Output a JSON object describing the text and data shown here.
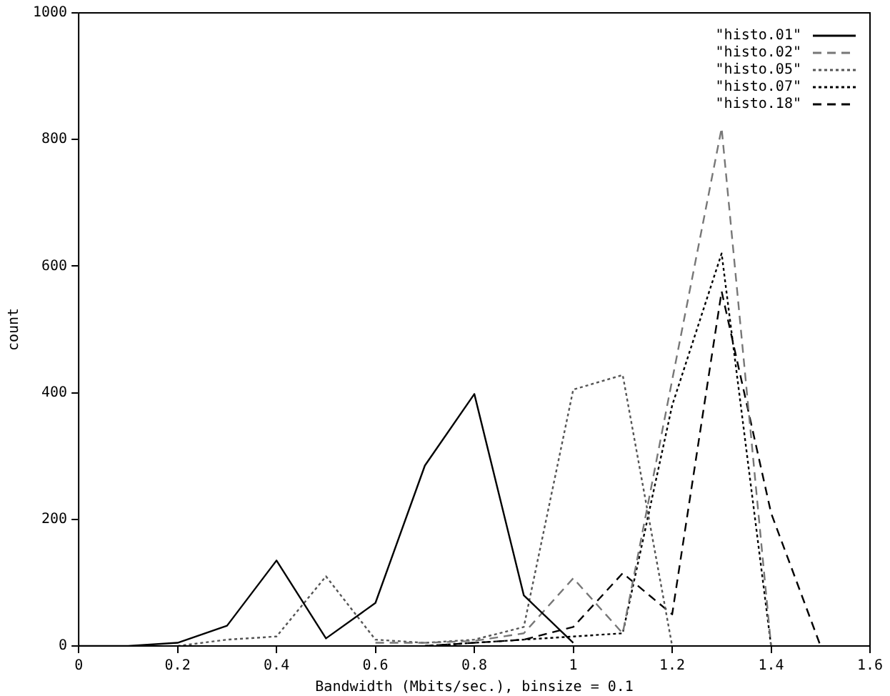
{
  "chart_data": {
    "type": "line",
    "xlabel": "Bandwidth (Mbits/sec.), binsize = 0.1",
    "ylabel": "count",
    "xlim": [
      0,
      1.6
    ],
    "xticks": [
      0,
      0.2,
      0.4,
      0.6,
      0.8,
      1,
      1.2,
      1.4,
      1.6
    ],
    "ylim": [
      0,
      1000
    ],
    "yticks": [
      0,
      200,
      400,
      600,
      800,
      1000
    ],
    "grid": false,
    "legend": "top right",
    "marker": "none",
    "series": [
      {
        "name": "\"histo.01\"",
        "color": "#000000",
        "line_style": "solid",
        "x": [
          0,
          0.1,
          0.2,
          0.3,
          0.4,
          0.5,
          0.6,
          0.7,
          0.8,
          0.9,
          1.0
        ],
        "values": [
          0,
          0,
          5,
          32,
          135,
          12,
          68,
          285,
          398,
          80,
          5
        ]
      },
      {
        "name": "\"histo.02\"",
        "color": "#777777",
        "line_style": "dashed",
        "x": [
          0.6,
          0.7,
          0.8,
          0.9,
          1.0,
          1.1,
          1.2,
          1.3,
          1.4
        ],
        "values": [
          5,
          5,
          8,
          20,
          107,
          20,
          420,
          818,
          0
        ]
      },
      {
        "name": "\"histo.05\"",
        "color": "#555555",
        "line_style": "dotted",
        "x": [
          0.2,
          0.3,
          0.4,
          0.5,
          0.6,
          0.7,
          0.8,
          0.9,
          1.0,
          1.1,
          1.2
        ],
        "values": [
          0,
          10,
          15,
          110,
          10,
          5,
          10,
          30,
          405,
          428,
          0
        ]
      },
      {
        "name": "\"histo.07\"",
        "color": "#000000",
        "line_style": "dotted",
        "x": [
          0.7,
          0.8,
          0.9,
          1.0,
          1.1,
          1.2,
          1.3,
          1.4
        ],
        "values": [
          0,
          5,
          10,
          15,
          20,
          380,
          620,
          0
        ]
      },
      {
        "name": "\"histo.18\"",
        "color": "#000000",
        "line_style": "dashed",
        "x": [
          0.7,
          0.8,
          0.9,
          1.0,
          1.1,
          1.2,
          1.3,
          1.4,
          1.5
        ],
        "values": [
          0,
          5,
          10,
          30,
          115,
          50,
          560,
          210,
          0
        ]
      }
    ]
  }
}
